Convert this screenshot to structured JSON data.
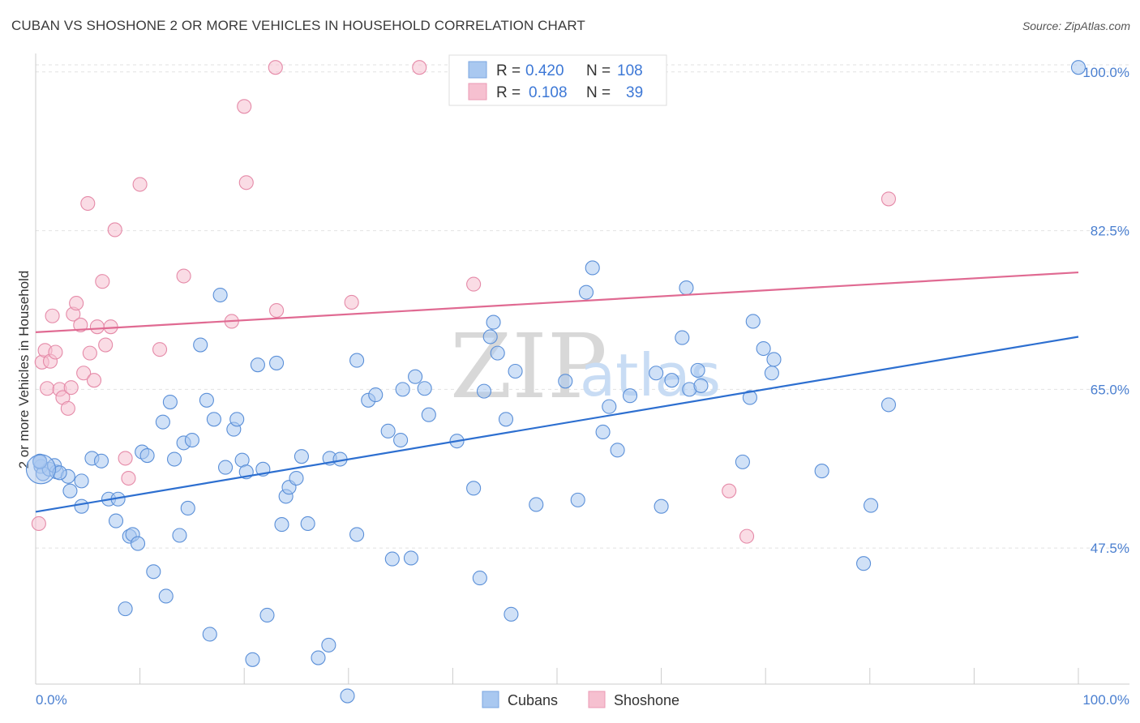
{
  "header": {
    "title": "CUBAN VS SHOSHONE 2 OR MORE VEHICLES IN HOUSEHOLD CORRELATION CHART",
    "source": "Source: ZipAtlas.com"
  },
  "watermark": {
    "zip": "ZIP",
    "atlas": "atlas"
  },
  "colors": {
    "blue_fill": "#a9c8f0",
    "blue_stroke": "#5a8fd8",
    "blue_line": "#2d6fd0",
    "pink_fill": "#f6c0d0",
    "pink_stroke": "#e58aa8",
    "pink_line": "#e06a92",
    "tick_text": "#4a7fd0"
  },
  "legend": {
    "rows": [
      {
        "r_label": "R =",
        "r_value": "0.420",
        "n_label": "N =",
        "n_value": "108"
      },
      {
        "r_label": "R =",
        "r_value": "0.108",
        "n_label": "N =",
        "n_value": "39"
      }
    ]
  },
  "bottom_legend": {
    "items": [
      "Cubans",
      "Shoshone"
    ]
  },
  "chart_data": {
    "type": "scatter",
    "title": "CUBAN VS SHOSHONE 2 OR MORE VEHICLES IN HOUSEHOLD CORRELATION CHART",
    "xlabel": "",
    "ylabel": "2 or more Vehicles in Household",
    "xlim": [
      0,
      100
    ],
    "ylim": [
      32.5,
      101.5
    ],
    "x_tick_labels": [
      "0.0%",
      "100.0%"
    ],
    "y_ticks": [
      47.5,
      65.0,
      82.5,
      100.0
    ],
    "y_tick_labels": [
      "47.5%",
      "65.0%",
      "82.5%",
      "100.0%"
    ],
    "grid": true,
    "legend_position": "top-center",
    "series": [
      {
        "name": "Cubans",
        "R": 0.42,
        "N": 108,
        "trend": {
          "x": [
            0,
            100
          ],
          "y": [
            51.5,
            70.8
          ]
        },
        "points": [
          [
            0.5,
            56.5
          ],
          [
            0.7,
            55.7
          ],
          [
            1.3,
            56.2
          ],
          [
            2.0,
            55.9
          ],
          [
            3.1,
            55.4
          ],
          [
            1.8,
            56.6
          ],
          [
            2.3,
            55.8
          ],
          [
            0.4,
            57.1
          ],
          [
            3.3,
            53.8
          ],
          [
            4.4,
            54.9
          ],
          [
            5.4,
            57.4
          ],
          [
            4.4,
            52.1
          ],
          [
            6.3,
            57.1
          ],
          [
            7.0,
            52.9
          ],
          [
            7.7,
            50.5
          ],
          [
            7.9,
            52.9
          ],
          [
            8.6,
            40.8
          ],
          [
            9.0,
            48.8
          ],
          [
            9.3,
            49.0
          ],
          [
            9.8,
            48.0
          ],
          [
            10.2,
            58.1
          ],
          [
            10.7,
            57.7
          ],
          [
            11.3,
            44.9
          ],
          [
            12.2,
            61.4
          ],
          [
            12.5,
            42.2
          ],
          [
            12.9,
            63.6
          ],
          [
            13.3,
            57.3
          ],
          [
            13.8,
            48.9
          ],
          [
            14.2,
            59.1
          ],
          [
            14.6,
            51.9
          ],
          [
            15.0,
            59.4
          ],
          [
            15.8,
            69.9
          ],
          [
            16.4,
            63.8
          ],
          [
            16.7,
            38.0
          ],
          [
            17.1,
            61.7
          ],
          [
            17.7,
            75.4
          ],
          [
            18.2,
            56.4
          ],
          [
            19.0,
            60.6
          ],
          [
            19.3,
            61.7
          ],
          [
            19.8,
            57.2
          ],
          [
            20.2,
            55.9
          ],
          [
            20.8,
            35.2
          ],
          [
            21.3,
            67.7
          ],
          [
            21.8,
            56.2
          ],
          [
            22.2,
            40.1
          ],
          [
            23.1,
            67.9
          ],
          [
            23.6,
            50.1
          ],
          [
            24.0,
            53.2
          ],
          [
            24.3,
            54.2
          ],
          [
            25.0,
            55.2
          ],
          [
            25.5,
            57.6
          ],
          [
            26.1,
            50.2
          ],
          [
            27.1,
            35.4
          ],
          [
            28.1,
            36.8
          ],
          [
            28.2,
            57.4
          ],
          [
            29.2,
            57.3
          ],
          [
            29.9,
            31.2
          ],
          [
            30.8,
            49.0
          ],
          [
            30.8,
            68.2
          ],
          [
            31.9,
            63.8
          ],
          [
            32.6,
            64.4
          ],
          [
            33.8,
            60.4
          ],
          [
            34.2,
            46.3
          ],
          [
            35.0,
            59.4
          ],
          [
            35.2,
            65.0
          ],
          [
            36.0,
            46.4
          ],
          [
            36.4,
            66.4
          ],
          [
            37.3,
            65.1
          ],
          [
            37.7,
            62.2
          ],
          [
            40.4,
            59.3
          ],
          [
            42.0,
            54.1
          ],
          [
            42.6,
            44.2
          ],
          [
            43.0,
            64.8
          ],
          [
            43.6,
            70.8
          ],
          [
            43.9,
            72.4
          ],
          [
            44.3,
            69.0
          ],
          [
            45.1,
            61.7
          ],
          [
            45.6,
            40.2
          ],
          [
            46.0,
            67.0
          ],
          [
            48.0,
            52.3
          ],
          [
            50.8,
            65.9
          ],
          [
            52.0,
            52.8
          ],
          [
            52.8,
            75.7
          ],
          [
            53.4,
            78.4
          ],
          [
            54.4,
            60.3
          ],
          [
            55.0,
            63.1
          ],
          [
            55.8,
            58.3
          ],
          [
            57.0,
            64.3
          ],
          [
            59.5,
            66.8
          ],
          [
            60.0,
            52.1
          ],
          [
            61.0,
            66.0
          ],
          [
            62.0,
            70.7
          ],
          [
            62.4,
            76.2
          ],
          [
            62.7,
            65.0
          ],
          [
            63.5,
            67.1
          ],
          [
            63.8,
            65.4
          ],
          [
            67.8,
            57.0
          ],
          [
            68.5,
            64.1
          ],
          [
            68.8,
            72.5
          ],
          [
            69.8,
            69.5
          ],
          [
            70.6,
            66.8
          ],
          [
            70.8,
            68.3
          ],
          [
            75.4,
            56.0
          ],
          [
            79.4,
            45.8
          ],
          [
            80.1,
            52.2
          ],
          [
            81.8,
            63.3
          ],
          [
            100.0,
            100.5
          ],
          [
            0.4,
            57.0
          ]
        ]
      },
      {
        "name": "Shoshone",
        "R": 0.108,
        "N": 39,
        "trend": {
          "x": [
            0,
            100
          ],
          "y": [
            71.3,
            77.9
          ]
        },
        "points": [
          [
            0.3,
            50.2
          ],
          [
            0.6,
            68.0
          ],
          [
            0.9,
            69.3
          ],
          [
            1.1,
            65.1
          ],
          [
            1.4,
            68.1
          ],
          [
            1.6,
            73.1
          ],
          [
            1.9,
            69.1
          ],
          [
            2.3,
            65.0
          ],
          [
            2.6,
            64.1
          ],
          [
            3.1,
            62.9
          ],
          [
            3.4,
            65.2
          ],
          [
            3.6,
            73.3
          ],
          [
            3.9,
            74.5
          ],
          [
            4.3,
            72.1
          ],
          [
            4.6,
            66.8
          ],
          [
            5.0,
            85.5
          ],
          [
            5.2,
            69.0
          ],
          [
            5.6,
            66.0
          ],
          [
            5.9,
            71.9
          ],
          [
            6.4,
            76.9
          ],
          [
            6.7,
            69.9
          ],
          [
            7.2,
            71.9
          ],
          [
            7.6,
            82.6
          ],
          [
            8.6,
            57.4
          ],
          [
            8.9,
            55.2
          ],
          [
            10.0,
            87.6
          ],
          [
            11.9,
            69.4
          ],
          [
            14.2,
            77.5
          ],
          [
            18.8,
            72.5
          ],
          [
            20.0,
            96.2
          ],
          [
            20.2,
            87.8
          ],
          [
            23.0,
            100.5
          ],
          [
            23.1,
            73.7
          ],
          [
            30.3,
            74.6
          ],
          [
            36.8,
            100.5
          ],
          [
            42.0,
            76.6
          ],
          [
            66.5,
            53.8
          ],
          [
            68.2,
            48.8
          ],
          [
            81.8,
            86.0
          ]
        ]
      }
    ]
  }
}
